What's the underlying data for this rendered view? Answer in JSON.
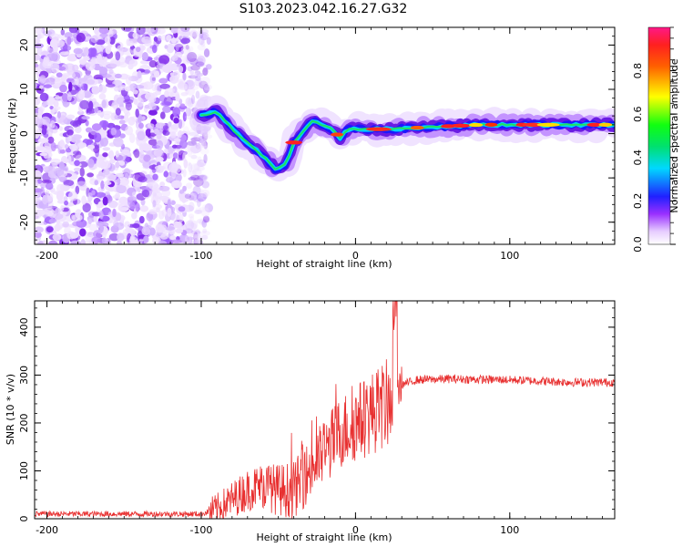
{
  "title": "S103.2023.042.16.27.G32",
  "chart_data": [
    {
      "type": "heatmap",
      "xlabel": "Height of straight line (km)",
      "ylabel": "Frequency (Hz)",
      "xlim": [
        -208,
        168
      ],
      "ylim": [
        -25,
        24
      ],
      "xticks": [
        -200,
        -100,
        0,
        100
      ],
      "yticks": [
        -20,
        -10,
        0,
        10,
        20
      ],
      "colorbar": {
        "label": "Normalized spectral amplitude",
        "range": [
          0,
          1
        ],
        "ticks": [
          0.0,
          0.2,
          0.4,
          0.6,
          0.8
        ]
      },
      "ridge": {
        "x": [
          -100,
          -90,
          -80,
          -70,
          -60,
          -52,
          -45,
          -40,
          -35,
          -28,
          -22,
          -15,
          -10,
          -5,
          0,
          20,
          50,
          80,
          100,
          130,
          168
        ],
        "y": [
          4,
          5,
          1,
          -2,
          -5,
          -8,
          -7,
          -2,
          0,
          3,
          2,
          1,
          -1,
          1,
          1,
          1,
          1.5,
          2,
          2,
          2,
          2
        ]
      }
    },
    {
      "type": "line",
      "xlabel": "Height of straight line (km)",
      "ylabel": "SNR (10 * v/v)",
      "xlim": [
        -208,
        168
      ],
      "ylim": [
        0,
        455
      ],
      "xticks": [
        -200,
        -100,
        0,
        100
      ],
      "yticks": [
        0,
        100,
        200,
        300,
        400
      ],
      "series": [
        {
          "name": "SNR",
          "color": "#e83030",
          "trend_x": [
            -208,
            -100,
            -90,
            -80,
            -70,
            -60,
            -50,
            -40,
            -30,
            -20,
            -10,
            0,
            10,
            20,
            25,
            30,
            40,
            60,
            100,
            140,
            168
          ],
          "trend_y": [
            10,
            10,
            20,
            40,
            60,
            70,
            60,
            60,
            100,
            140,
            180,
            200,
            220,
            240,
            260,
            280,
            290,
            292,
            290,
            285,
            285
          ]
        }
      ]
    }
  ]
}
